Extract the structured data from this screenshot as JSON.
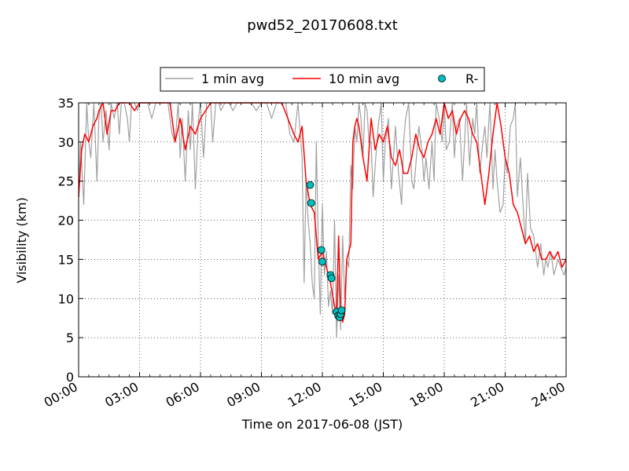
{
  "chart_data": {
    "type": "line",
    "title": "pwd52_20170608.txt",
    "xlabel": "Time on 2017-06-08 (JST)",
    "ylabel": "Visibility (km)",
    "xlim": [
      0,
      24
    ],
    "ylim": [
      0,
      35
    ],
    "x_ticks": [
      0,
      3,
      6,
      9,
      12,
      15,
      18,
      21,
      24
    ],
    "x_tick_labels": [
      "00:00",
      "03:00",
      "06:00",
      "09:00",
      "12:00",
      "15:00",
      "18:00",
      "21:00",
      "24:00"
    ],
    "y_ticks": [
      0,
      5,
      10,
      15,
      20,
      25,
      30,
      35
    ],
    "y_tick_labels": [
      "0",
      "5",
      "10",
      "15",
      "20",
      "25",
      "30",
      "35"
    ],
    "grid": true,
    "legend_position": "top-center",
    "series": [
      {
        "name": "1 min avg",
        "style": "line",
        "color": "#a0a0a0",
        "x": [
          0.0,
          0.1,
          0.25,
          0.4,
          0.5,
          0.6,
          0.75,
          0.9,
          1.0,
          1.1,
          1.2,
          1.35,
          1.5,
          1.6,
          1.75,
          1.9,
          2.0,
          2.1,
          2.25,
          2.4,
          2.5,
          2.6,
          2.75,
          2.9,
          3.0,
          3.2,
          3.4,
          3.6,
          3.8,
          4.0,
          4.2,
          4.4,
          4.6,
          4.75,
          4.9,
          5.0,
          5.1,
          5.25,
          5.4,
          5.5,
          5.6,
          5.75,
          5.9,
          6.0,
          6.15,
          6.3,
          6.5,
          6.6,
          6.75,
          6.9,
          7.0,
          7.2,
          7.4,
          7.6,
          7.8,
          8.0,
          8.2,
          8.5,
          8.75,
          9.0,
          9.25,
          9.5,
          9.75,
          10.0,
          10.2,
          10.4,
          10.6,
          10.8,
          11.0,
          11.1,
          11.2,
          11.3,
          11.4,
          11.5,
          11.6,
          11.7,
          11.8,
          11.9,
          12.0,
          12.1,
          12.2,
          12.3,
          12.4,
          12.5,
          12.6,
          12.7,
          12.8,
          12.9,
          13.0,
          13.1,
          13.2,
          13.3,
          13.4,
          13.5,
          13.6,
          13.7,
          13.8,
          13.9,
          14.0,
          14.1,
          14.2,
          14.3,
          14.4,
          14.5,
          14.6,
          14.75,
          14.9,
          15.0,
          15.1,
          15.25,
          15.4,
          15.5,
          15.6,
          15.75,
          15.9,
          16.0,
          16.1,
          16.25,
          16.4,
          16.5,
          16.6,
          16.75,
          16.9,
          17.0,
          17.1,
          17.25,
          17.4,
          17.5,
          17.6,
          17.75,
          17.9,
          18.0,
          18.1,
          18.25,
          18.4,
          18.5,
          18.6,
          18.75,
          18.9,
          19.0,
          19.1,
          19.25,
          19.4,
          19.5,
          19.6,
          19.75,
          19.9,
          20.0,
          20.1,
          20.25,
          20.4,
          20.5,
          20.6,
          20.75,
          20.9,
          21.0,
          21.1,
          21.25,
          21.4,
          21.5,
          21.6,
          21.75,
          21.9,
          22.0,
          22.1,
          22.25,
          22.4,
          22.5,
          22.6,
          22.75,
          22.9,
          23.0,
          23.1,
          23.25,
          23.4,
          23.5,
          23.6,
          23.75,
          23.9,
          24.0
        ],
        "y": [
          24,
          30,
          22,
          35,
          30,
          28,
          35,
          25,
          33,
          35,
          30,
          34,
          29,
          35,
          33,
          35,
          31,
          35,
          35,
          33,
          30,
          35,
          35,
          34,
          35,
          35,
          35,
          33,
          35,
          35,
          35,
          35,
          31,
          30,
          35,
          28,
          33,
          25,
          34,
          29,
          35,
          24,
          33,
          35,
          28,
          35,
          35,
          30,
          35,
          35,
          34,
          35,
          35,
          34,
          35,
          35,
          35,
          35,
          34,
          35,
          35,
          33,
          35,
          35,
          35,
          31,
          30,
          35,
          28,
          12,
          25,
          20,
          17,
          12,
          10,
          30,
          17,
          8,
          22,
          13,
          16,
          9,
          11,
          8,
          20,
          5,
          13,
          6,
          18,
          10,
          15,
          14,
          27,
          24,
          32,
          30,
          35,
          33,
          28,
          35,
          34,
          30,
          30,
          23,
          27,
          32,
          35,
          25,
          30,
          33,
          24,
          28,
          32,
          26,
          22,
          30,
          33,
          35,
          25,
          24,
          27,
          32,
          29,
          25,
          28,
          24,
          30,
          25,
          35,
          33,
          30,
          35,
          29,
          30,
          35,
          28,
          32,
          33,
          25,
          30,
          35,
          27,
          33,
          31,
          35,
          26,
          30,
          32,
          28,
          35,
          24,
          29,
          25,
          21,
          22,
          28,
          26,
          32,
          33,
          35,
          23,
          28,
          21,
          17,
          26,
          19,
          18,
          16,
          14,
          17,
          13,
          15,
          14,
          16,
          13,
          14,
          15,
          14,
          13,
          14
        ]
      },
      {
        "name": "10 min avg",
        "style": "line",
        "color": "#ff0000",
        "x": [
          0.0,
          0.15,
          0.3,
          0.5,
          0.7,
          0.9,
          1.0,
          1.2,
          1.4,
          1.6,
          1.8,
          2.0,
          2.25,
          2.5,
          2.75,
          3.0,
          3.5,
          4.0,
          4.5,
          4.75,
          5.0,
          5.25,
          5.5,
          5.75,
          6.0,
          6.25,
          6.5,
          7.0,
          7.5,
          8.0,
          8.5,
          9.0,
          9.5,
          10.0,
          10.3,
          10.6,
          10.8,
          11.0,
          11.2,
          11.4,
          11.6,
          11.8,
          12.0,
          12.2,
          12.4,
          12.6,
          12.7,
          12.8,
          12.9,
          13.0,
          13.1,
          13.2,
          13.3,
          13.4,
          13.5,
          13.6,
          13.7,
          13.8,
          14.0,
          14.2,
          14.4,
          14.6,
          14.8,
          15.0,
          15.2,
          15.4,
          15.6,
          15.8,
          16.0,
          16.2,
          16.4,
          16.6,
          16.8,
          17.0,
          17.2,
          17.4,
          17.6,
          17.8,
          18.0,
          18.2,
          18.4,
          18.6,
          18.8,
          19.0,
          19.2,
          19.4,
          19.6,
          19.8,
          20.0,
          20.2,
          20.4,
          20.6,
          20.8,
          21.0,
          21.2,
          21.4,
          21.6,
          21.8,
          22.0,
          22.2,
          22.4,
          22.6,
          22.8,
          23.0,
          23.2,
          23.4,
          23.6,
          23.8,
          24.0
        ],
        "y": [
          23,
          29,
          31,
          30,
          32,
          33,
          34,
          35,
          31,
          34,
          34,
          35,
          35,
          35,
          34,
          35,
          35,
          35,
          35,
          30,
          33,
          29,
          32,
          31,
          33,
          34,
          35,
          35,
          35,
          35,
          35,
          35,
          35,
          35,
          33,
          31,
          30,
          32,
          25,
          22,
          21,
          15,
          16,
          14,
          12,
          9,
          8,
          18,
          8,
          7,
          8,
          15,
          16,
          17,
          30,
          32,
          33,
          32,
          28,
          25,
          33,
          29,
          31,
          30,
          32,
          28,
          27,
          29,
          26,
          26,
          28,
          31,
          29,
          28,
          30,
          31,
          33,
          31,
          35,
          33,
          34,
          31,
          33,
          34,
          33,
          31,
          30,
          26,
          22,
          26,
          31,
          35,
          32,
          28,
          26,
          22,
          21,
          19,
          17,
          18,
          16,
          17,
          15,
          15,
          16,
          15,
          16,
          14,
          15
        ]
      },
      {
        "name": "R-",
        "style": "scatter",
        "color": "#00bfbf",
        "x": [
          11.4,
          11.45,
          11.95,
          12.0,
          12.4,
          12.45,
          12.7,
          12.78,
          12.85,
          12.9,
          12.95
        ],
        "y": [
          24.5,
          22.2,
          16.2,
          14.7,
          13.0,
          12.6,
          8.3,
          7.8,
          7.6,
          8.0,
          8.5
        ]
      }
    ]
  }
}
